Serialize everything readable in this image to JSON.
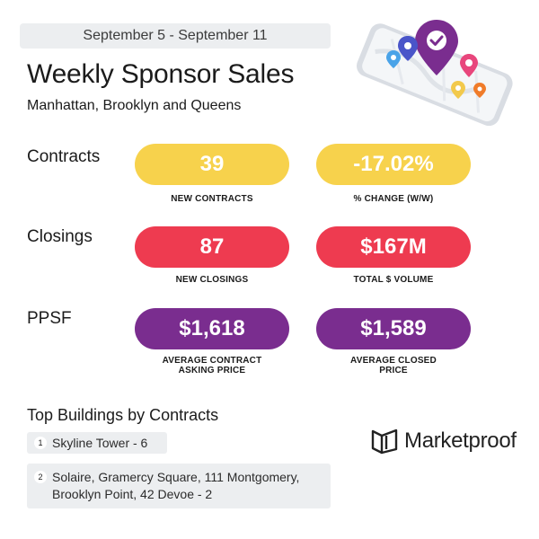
{
  "header": {
    "date_range": "September 5 - September 11",
    "title": "Weekly Sponsor Sales",
    "subtitle": "Manhattan, Brooklyn and Queens"
  },
  "sections": {
    "contracts": {
      "label": "Contracts",
      "left_value": "39",
      "left_caption": "NEW CONTRACTS",
      "right_value": "-17.02%",
      "right_caption": "% CHANGE (W/W)",
      "color": "#f7d24c"
    },
    "closings": {
      "label": "Closings",
      "left_value": "87",
      "left_caption": "NEW CLOSINGS",
      "right_value": "$167M",
      "right_caption": "TOTAL $ VOLUME",
      "color": "#ee3b50"
    },
    "ppsf": {
      "label": "PPSF",
      "left_value": "$1,618",
      "left_caption_line1": "AVERAGE CONTRACT",
      "left_caption_line2": "ASKING PRICE",
      "right_value": "$1,589",
      "right_caption_line1": "AVERAGE CLOSED",
      "right_caption_line2": "PRICE",
      "color": "#7a2d8f"
    }
  },
  "top_buildings": {
    "title": "Top Buildings by Contracts",
    "items": [
      {
        "rank": "1",
        "text": "Skyline Tower - 6"
      },
      {
        "rank": "2",
        "text": "Solaire, Gramercy Square, 111 Montgomery, Brooklyn Point, 42 Devoe - 2"
      }
    ]
  },
  "brand": {
    "name": "Marketproof",
    "logo_icon": "marketproof-logo-icon"
  },
  "illustration": {
    "icon": "phone-map-pins-icon"
  }
}
